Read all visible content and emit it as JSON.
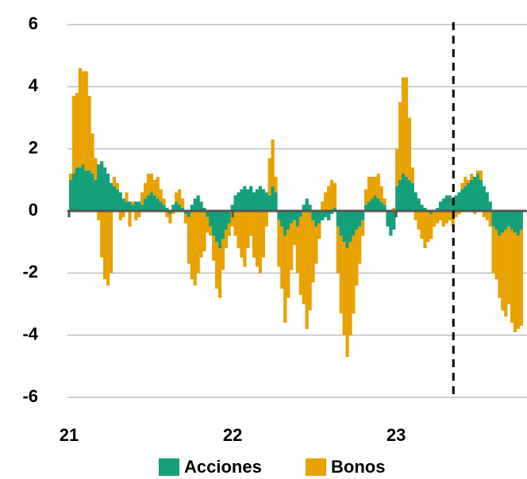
{
  "chart_data": {
    "type": "stacked_bar",
    "x": [
      21,
      21.019,
      21.038,
      21.057,
      21.076,
      21.095,
      21.114,
      21.133,
      21.152,
      21.171,
      21.19,
      21.209,
      21.228,
      21.247,
      21.266,
      21.285,
      21.304,
      21.323,
      21.342,
      21.361,
      21.38,
      21.399,
      21.418,
      21.437,
      21.456,
      21.475,
      21.494,
      21.513,
      21.532,
      21.551,
      21.57,
      21.589,
      21.608,
      21.627,
      21.646,
      21.665,
      21.684,
      21.703,
      21.722,
      21.741,
      21.76,
      21.779,
      21.798,
      21.817,
      21.836,
      21.855,
      21.874,
      21.893,
      21.912,
      21.931,
      21.95,
      21.969,
      21.988,
      22.007,
      22.026,
      22.045,
      22.064,
      22.083,
      22.102,
      22.121,
      22.14,
      22.159,
      22.178,
      22.197,
      22.216,
      22.235,
      22.254,
      22.273,
      22.292,
      22.311,
      22.33,
      22.349,
      22.368,
      22.387,
      22.406,
      22.425,
      22.444,
      22.463,
      22.482,
      22.501,
      22.52,
      22.539,
      22.558,
      22.577,
      22.596,
      22.615,
      22.634,
      22.653,
      22.672,
      22.691,
      22.71,
      22.729,
      22.748,
      22.767,
      22.786,
      22.805,
      22.824,
      22.843,
      22.862,
      22.881,
      22.9,
      22.919,
      22.938,
      22.957,
      22.976,
      22.995,
      23.014,
      23.033,
      23.052,
      23.071,
      23.09,
      23.109,
      23.128,
      23.147,
      23.166,
      23.185,
      23.204,
      23.223,
      23.242,
      23.261,
      23.28,
      23.299,
      23.318,
      23.337,
      23.356,
      23.375,
      23.394,
      23.413,
      23.432,
      23.451,
      23.47,
      23.489,
      23.508,
      23.527,
      23.546,
      23.565,
      23.584,
      23.603,
      23.622,
      23.641,
      23.66,
      23.679,
      23.698,
      23.717,
      23.736,
      23.755
    ],
    "series": [
      {
        "name": "Acciones",
        "color": "#14a07a",
        "values": [
          1.0,
          1.2,
          1.4,
          1.4,
          1.5,
          1.3,
          1.3,
          1.2,
          1.0,
          1.5,
          1.6,
          1.4,
          1.2,
          0.9,
          0.8,
          0.7,
          0.6,
          0.4,
          0.3,
          0.3,
          0.2,
          0.3,
          0.3,
          0.2,
          0.4,
          0.5,
          0.6,
          0.5,
          0.4,
          0.3,
          0.2,
          0.1,
          -0.1,
          0.2,
          0.3,
          0.2,
          0.1,
          -0.1,
          -0.2,
          0.2,
          0.4,
          0.5,
          0.3,
          0.1,
          -0.2,
          -0.5,
          -0.8,
          -1.0,
          -1.2,
          -0.9,
          -0.6,
          -0.4,
          0.2,
          0.5,
          0.6,
          0.7,
          0.8,
          0.7,
          0.8,
          0.6,
          0.7,
          0.8,
          0.7,
          0.6,
          0.5,
          0.8,
          0.6,
          -0.3,
          -0.5,
          -0.8,
          -0.6,
          -0.4,
          -0.3,
          -0.5,
          -0.2,
          0.2,
          0.4,
          0.2,
          -0.3,
          -0.5,
          -0.4,
          -0.3,
          -0.2,
          -0.3,
          -0.1,
          0.1,
          -0.5,
          -0.8,
          -1.0,
          -1.2,
          -1.0,
          -0.8,
          -0.6,
          -0.5,
          -0.3,
          0.2,
          0.3,
          0.4,
          0.5,
          0.4,
          0.3,
          0.2,
          -0.5,
          -0.8,
          -0.6,
          0.8,
          1.0,
          1.2,
          1.1,
          1.0,
          0.9,
          0.6,
          0.4,
          0.2,
          0.1,
          0.0,
          -0.1,
          0.0,
          0.1,
          0.3,
          0.4,
          0.5,
          0.5,
          0.4,
          0.5,
          0.6,
          0.7,
          0.8,
          0.9,
          1.0,
          1.1,
          1.2,
          1.0,
          0.8,
          0.6,
          0.3,
          -0.5,
          -0.6,
          -0.8,
          -0.7,
          -0.6,
          -0.5,
          -0.6,
          -0.7,
          -0.8,
          -0.6
        ]
      },
      {
        "name": "Bonos",
        "color": "#e8a202",
        "values": [
          0.2,
          2.5,
          2.4,
          3.2,
          3.0,
          3.2,
          2.4,
          1.3,
          0.7,
          -0.3,
          -1.5,
          -2.2,
          -2.4,
          -2.0,
          0.3,
          0.2,
          -0.3,
          -0.2,
          0.3,
          -0.5,
          0.1,
          -0.3,
          -0.2,
          0.4,
          0.5,
          0.7,
          0.6,
          0.5,
          0.7,
          0.4,
          0.2,
          -0.2,
          -0.3,
          -0.1,
          0.3,
          0.5,
          0.3,
          -0.3,
          -1.5,
          -2.2,
          -2.4,
          -2.0,
          -1.5,
          -1.3,
          -0.5,
          -0.3,
          -0.8,
          -1.5,
          -1.6,
          -1.0,
          -0.6,
          -0.4,
          -0.5,
          -0.8,
          -1.2,
          -1.5,
          -1.8,
          -1.2,
          -0.8,
          -1.5,
          -1.8,
          -2.0,
          -1.5,
          -0.5,
          1.2,
          1.5,
          0.5,
          -1.5,
          -2.0,
          -2.8,
          -2.2,
          -1.5,
          -0.8,
          -1.5,
          -2.5,
          -3.0,
          -3.8,
          -3.2,
          -2.0,
          -1.2,
          -0.5,
          0.3,
          0.6,
          0.8,
          1.0,
          0.8,
          -1.5,
          -2.5,
          -3.0,
          -3.5,
          -3.0,
          -2.5,
          -1.8,
          -1.2,
          -0.5,
          0.5,
          0.8,
          0.7,
          0.6,
          0.8,
          0.5,
          0.2,
          0.0,
          0.0,
          0.1,
          1.2,
          2.5,
          3.1,
          3.2,
          2.0,
          0.5,
          -0.3,
          -0.6,
          -0.9,
          -1.2,
          -1.0,
          -0.8,
          -0.5,
          -0.4,
          -0.3,
          -0.5,
          -0.4,
          -0.3,
          -0.5,
          -0.2,
          -0.1,
          0.2,
          0.3,
          0.1,
          0.2,
          -0.1,
          0.1,
          0.3,
          -0.2,
          -0.3,
          -0.5,
          -1.5,
          -1.6,
          -2.0,
          -2.5,
          -2.8,
          -2.5,
          -3.0,
          -3.2,
          -3.0,
          -3.1
        ]
      }
    ],
    "xlim": [
      21,
      23.8
    ],
    "xticks": [
      21,
      22,
      23
    ],
    "ylim": [
      -6,
      6
    ],
    "yticks": [
      -6,
      -4,
      -2,
      0,
      2,
      4,
      6
    ],
    "grid": true,
    "vline": 23.35,
    "legend": "bottom"
  }
}
